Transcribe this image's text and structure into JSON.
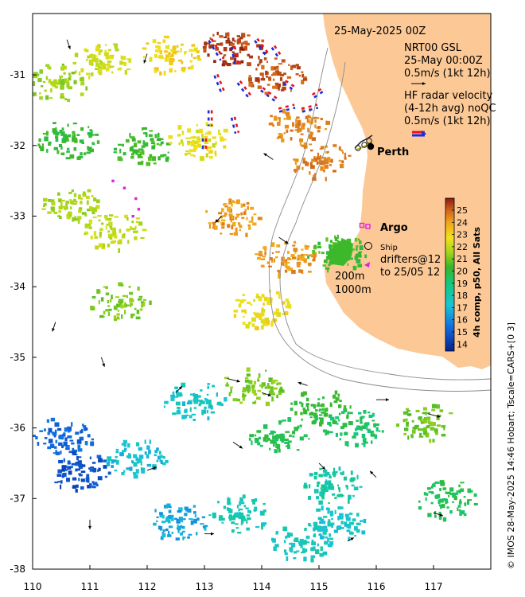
{
  "map": {
    "date_title": "25-May-2025 00Z",
    "place_label": "Perth",
    "x_ticks": [
      "110",
      "111",
      "112",
      "113",
      "114",
      "115",
      "116",
      "117"
    ],
    "y_ticks": [
      "-31",
      "-32",
      "-33",
      "-34",
      "-35",
      "-36",
      "-37",
      "-38"
    ],
    "land_color": "#fcc996",
    "credit": "© IMOS 28-May-2025 14:46 Hobart; Tscale=CARS+[0 3]"
  },
  "legend": {
    "gsl_name": "NRT00 GSL",
    "gsl_time": "25-May 00:00Z",
    "gsl_scale": "0.5m/s (1kt 12h)",
    "hf_title": "HF radar velocity",
    "hf_avg": "(4-12h avg) noQC",
    "hf_scale": "0.5m/s (1kt 12h)",
    "argo": "Argo",
    "ship": "Ship",
    "drifters_1": "drifters@12",
    "drifters_2": "to 25/05 12",
    "isobath_1": "200m",
    "isobath_2": "1000m"
  },
  "colorbar": {
    "label": "4h comp, p50, All Sats",
    "ticks": [
      "25",
      "24",
      "23",
      "22",
      "21",
      "20",
      "19",
      "18",
      "17",
      "16",
      "15",
      "14"
    ]
  },
  "chart_data": {
    "type": "heatmap",
    "title": "25-May-2025 00Z",
    "xlabel": "",
    "ylabel": "",
    "x_range": [
      110,
      118
    ],
    "y_range": [
      -38,
      -30.2
    ],
    "x_ticks": [
      110,
      111,
      112,
      113,
      114,
      115,
      116,
      117
    ],
    "y_ticks": [
      -31,
      -32,
      -33,
      -34,
      -35,
      -36,
      -37,
      -38
    ],
    "colorbar": {
      "label": "4h comp, p50, All Sats",
      "range": [
        14,
        25
      ]
    },
    "sst_patches": [
      {
        "lon": 113.5,
        "lat": -30.6,
        "value": 24.5
      },
      {
        "lon": 114.2,
        "lat": -31.0,
        "value": 24.2
      },
      {
        "lon": 114.6,
        "lat": -31.7,
        "value": 23.5
      },
      {
        "lon": 115.0,
        "lat": -32.2,
        "value": 23.5
      },
      {
        "lon": 112.4,
        "lat": -30.7,
        "value": 22.2
      },
      {
        "lon": 111.2,
        "lat": -30.8,
        "value": 21.5
      },
      {
        "lon": 110.4,
        "lat": -31.1,
        "value": 20.8
      },
      {
        "lon": 110.6,
        "lat": -31.9,
        "value": 19.5
      },
      {
        "lon": 111.9,
        "lat": -32.0,
        "value": 19.8
      },
      {
        "lon": 112.9,
        "lat": -31.9,
        "value": 21.8
      },
      {
        "lon": 110.6,
        "lat": -32.8,
        "value": 21.0
      },
      {
        "lon": 111.4,
        "lat": -33.2,
        "value": 21.3
      },
      {
        "lon": 113.5,
        "lat": -33.0,
        "value": 23.2
      },
      {
        "lon": 114.4,
        "lat": -33.6,
        "value": 23.3
      },
      {
        "lon": 115.3,
        "lat": -33.5,
        "value": 19.8
      },
      {
        "lon": 111.5,
        "lat": -34.2,
        "value": 20.5
      },
      {
        "lon": 114.0,
        "lat": -34.3,
        "value": 22.0
      },
      {
        "lon": 113.8,
        "lat": -35.4,
        "value": 20.5
      },
      {
        "lon": 115.0,
        "lat": -35.7,
        "value": 19.5
      },
      {
        "lon": 116.8,
        "lat": -35.9,
        "value": 20.3
      },
      {
        "lon": 110.5,
        "lat": -36.1,
        "value": 15.5
      },
      {
        "lon": 110.8,
        "lat": -36.6,
        "value": 15.0
      },
      {
        "lon": 111.8,
        "lat": -36.4,
        "value": 17.0
      },
      {
        "lon": 112.8,
        "lat": -35.6,
        "value": 17.2
      },
      {
        "lon": 114.3,
        "lat": -36.1,
        "value": 19.0
      },
      {
        "lon": 115.6,
        "lat": -36.0,
        "value": 18.8
      },
      {
        "lon": 115.2,
        "lat": -36.8,
        "value": 17.8
      },
      {
        "lon": 113.6,
        "lat": -37.2,
        "value": 17.5
      },
      {
        "lon": 115.3,
        "lat": -37.3,
        "value": 17.2
      },
      {
        "lon": 114.7,
        "lat": -37.6,
        "value": 17.4
      },
      {
        "lon": 117.2,
        "lat": -37.0,
        "value": 19.0
      },
      {
        "lon": 112.5,
        "lat": -37.3,
        "value": 16.5
      }
    ],
    "hf_radar_vectors": [
      {
        "lon": 113.1,
        "lat": -30.5,
        "u": 0.3,
        "v": -0.5
      },
      {
        "lon": 113.5,
        "lat": -30.6,
        "u": 0.1,
        "v": -0.5
      },
      {
        "lon": 113.9,
        "lat": -30.5,
        "u": 0.3,
        "v": -0.4
      },
      {
        "lon": 114.2,
        "lat": -30.6,
        "u": 0.2,
        "v": -0.3
      },
      {
        "lon": 113.2,
        "lat": -31.0,
        "u": 0.2,
        "v": -0.5
      },
      {
        "lon": 113.6,
        "lat": -31.1,
        "u": 0.3,
        "v": -0.4
      },
      {
        "lon": 114.0,
        "lat": -31.2,
        "u": 0.4,
        "v": -0.3
      },
      {
        "lon": 114.4,
        "lat": -31.1,
        "u": 0.3,
        "v": -0.2
      },
      {
        "lon": 113.1,
        "lat": -31.5,
        "u": 0.0,
        "v": -0.4
      },
      {
        "lon": 113.5,
        "lat": -31.6,
        "u": 0.1,
        "v": -0.4
      },
      {
        "lon": 114.3,
        "lat": -31.5,
        "u": 0.4,
        "v": 0.1
      },
      {
        "lon": 114.7,
        "lat": -31.5,
        "u": 0.4,
        "v": 0.1
      },
      {
        "lon": 114.9,
        "lat": -31.3,
        "u": 0.3,
        "v": 0.2
      },
      {
        "lon": 113.0,
        "lat": -31.9,
        "u": 0.0,
        "v": -0.3
      }
    ],
    "gsl_vectors": [
      {
        "lon": 110.6,
        "lat": -30.5,
        "u": 0.1,
        "v": -0.3
      },
      {
        "lon": 112.0,
        "lat": -30.7,
        "u": -0.1,
        "v": -0.3
      },
      {
        "lon": 114.2,
        "lat": -32.2,
        "u": -0.3,
        "v": 0.2
      },
      {
        "lon": 113.3,
        "lat": -33.0,
        "u": -0.2,
        "v": -0.2
      },
      {
        "lon": 114.3,
        "lat": -33.3,
        "u": 0.3,
        "v": -0.2
      },
      {
        "lon": 110.4,
        "lat": -34.5,
        "u": -0.1,
        "v": -0.3
      },
      {
        "lon": 111.2,
        "lat": -35.0,
        "u": 0.1,
        "v": -0.3
      },
      {
        "lon": 112.5,
        "lat": -35.5,
        "u": 0.2,
        "v": 0.2
      },
      {
        "lon": 113.4,
        "lat": -35.3,
        "u": 0.4,
        "v": -0.1
      },
      {
        "lon": 114.0,
        "lat": -35.5,
        "u": 0.3,
        "v": -0.1
      },
      {
        "lon": 114.8,
        "lat": -35.4,
        "u": -0.3,
        "v": 0.1
      },
      {
        "lon": 116.0,
        "lat": -35.6,
        "u": 0.4,
        "v": 0.0
      },
      {
        "lon": 116.9,
        "lat": -35.8,
        "u": 0.4,
        "v": -0.1
      },
      {
        "lon": 112.0,
        "lat": -36.6,
        "u": 0.3,
        "v": 0.1
      },
      {
        "lon": 113.5,
        "lat": -36.2,
        "u": 0.3,
        "v": -0.2
      },
      {
        "lon": 115.0,
        "lat": -36.5,
        "u": 0.2,
        "v": -0.2
      },
      {
        "lon": 116.0,
        "lat": -36.7,
        "u": -0.2,
        "v": 0.2
      },
      {
        "lon": 111.0,
        "lat": -37.3,
        "u": 0.0,
        "v": -0.3
      },
      {
        "lon": 113.0,
        "lat": -37.5,
        "u": 0.3,
        "v": 0.0
      },
      {
        "lon": 115.5,
        "lat": -37.6,
        "u": 0.2,
        "v": 0.1
      },
      {
        "lon": 117.0,
        "lat": -37.2,
        "u": 0.3,
        "v": -0.1
      }
    ],
    "argo_floats": [
      {
        "lon": 115.75,
        "lat": -33.13
      }
    ],
    "drifter_track": [
      {
        "lon": 111.4,
        "lat": -32.5
      },
      {
        "lon": 111.6,
        "lat": -32.6
      },
      {
        "lon": 111.8,
        "lat": -32.75
      },
      {
        "lon": 111.85,
        "lat": -32.9
      },
      {
        "lon": 111.75,
        "lat": -33.0
      }
    ]
  }
}
